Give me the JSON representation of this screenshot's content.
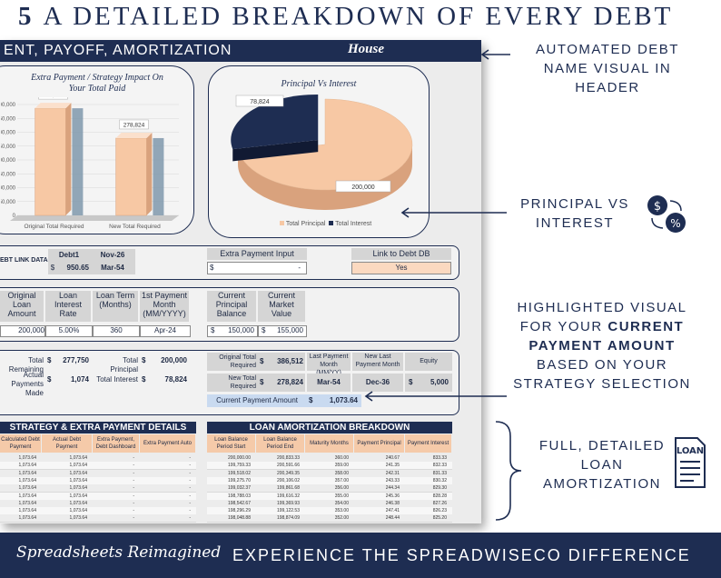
{
  "heading": {
    "number": "5",
    "text": "A DETAILED BREAKDOWN OF EVERY DEBT"
  },
  "sheet": {
    "title": "ENT, PAYOFF, AMORTIZATION",
    "debt_name": "House",
    "bar_panel": {
      "title_line1": "Extra Payment / Strategy Impact On",
      "title_line2": "Your Total Paid",
      "y_ticks": [
        "00,000",
        "50,000",
        "00,000",
        "50,000",
        "00,000",
        "50,000",
        "00,000",
        "50,000",
        "0"
      ]
    },
    "pie_panel": {
      "title": "Principal Vs Interest",
      "legend_principal": "Total Principal",
      "legend_interest": "Total Interest"
    },
    "link_row": {
      "label": "EBT LINK DATA",
      "debt": "Debt1",
      "date1": "Nov-26",
      "dollar": "$",
      "amount": "950.65",
      "date2": "Mar-54",
      "extra_label": "Extra Payment Input",
      "extra_dollar": "$",
      "extra_value": "-",
      "link_label": "Link to Debt DB",
      "link_value": "Yes"
    },
    "loan_row": {
      "h1": "Original Loan Amount",
      "h2": "Loan Interest Rate",
      "h3": "Loan Term (Months)",
      "h4": "1st Payment Month (MM/YYYY)",
      "h5": "Current Principal Balance",
      "h6": "Current Market Value",
      "v1": "200,000",
      "v2": "5.00%",
      "v3": "360",
      "v4": "Apr-24",
      "v5_dollar": "$",
      "v5": "150,000",
      "v6_dollar": "$",
      "v6": "155,000"
    },
    "summary": {
      "total_remaining_label": "Total Remaining",
      "total_remaining": "277,750",
      "total_principal_label": "Total Principal",
      "total_principal": "200,000",
      "actual_payments_label": "Actual Payments Made",
      "actual_payments": "1,074",
      "total_interest_label": "Total Interest",
      "total_interest": "78,824",
      "orig_total_label": "Original Total Required",
      "orig_total": "386,512",
      "last_month_label": "Last Payment Month (MM/YY)",
      "last_month": "Mar-54",
      "new_last_label": "New Last Payment Month",
      "new_last": "Dec-36",
      "equity_label": "Equity",
      "equity": "5,000",
      "new_total_label": "New Total Required",
      "new_total": "278,824",
      "current_payment_label": "Current Payment Amount",
      "current_payment": "1,073.64",
      "dollar": "$"
    },
    "strategy_table": {
      "title": "STRATEGY & EXTRA PAYMENT DETAILS",
      "headers": [
        "Calculated Debt Payment",
        "Actual Debt Payment",
        "Extra Payment, Debt Dashboard",
        "Extra Payment Auto"
      ],
      "rows": [
        [
          "1,073.64",
          "1,073.64",
          "-",
          "-"
        ],
        [
          "1,073.64",
          "1,073.64",
          "-",
          "-"
        ],
        [
          "1,073.64",
          "1,073.64",
          "-",
          "-"
        ],
        [
          "1,073.64",
          "1,073.64",
          "-",
          "-"
        ],
        [
          "1,073.64",
          "1,073.64",
          "-",
          "-"
        ],
        [
          "1,073.64",
          "1,073.64",
          "-",
          "-"
        ],
        [
          "1,073.64",
          "1,073.64",
          "-",
          "-"
        ],
        [
          "1,073.64",
          "1,073.64",
          "-",
          "-"
        ],
        [
          "1,073.64",
          "1,073.64",
          "-",
          "-"
        ]
      ]
    },
    "amort_table": {
      "title": "LOAN AMORTIZATION BREAKDOWN",
      "headers": [
        "Loan Balance Period Start",
        "Loan Balance Period End",
        "Maturity Months",
        "Payment Principal",
        "Payment Interest"
      ],
      "rows": [
        [
          "200,000.00",
          "200,833.33",
          "360.00",
          "240.67",
          "833.33"
        ],
        [
          "199,759.33",
          "200,591.66",
          "359.00",
          "241.35",
          "832.33"
        ],
        [
          "199,518.02",
          "200,349.35",
          "358.00",
          "242.31",
          "831.33"
        ],
        [
          "199,275.70",
          "200,106.02",
          "357.00",
          "243.33",
          "830.32"
        ],
        [
          "199,032.37",
          "199,861.68",
          "356.00",
          "244.34",
          "829.30"
        ],
        [
          "198,788.03",
          "199,616.32",
          "355.00",
          "245.36",
          "828.28"
        ],
        [
          "198,542.67",
          "199,369.93",
          "354.00",
          "246.38",
          "827.26"
        ],
        [
          "198,296.29",
          "199,122.53",
          "353.00",
          "247.41",
          "826.23"
        ],
        [
          "198,048.88",
          "198,874.09",
          "352.00",
          "248.44",
          "825.20"
        ]
      ]
    }
  },
  "chart_data": [
    {
      "type": "bar",
      "title": "Extra Payment / Strategy Impact On Your Total Paid",
      "categories": [
        "Original Total Required",
        "New Total Required"
      ],
      "values": [
        386512,
        278824
      ],
      "data_labels": [
        "386,512",
        "278,824"
      ],
      "ylim": [
        0,
        400000
      ],
      "colors": [
        "#f7c8a4",
        "#f7c8a4"
      ]
    },
    {
      "type": "pie",
      "title": "Principal Vs Interest",
      "categories": [
        "Total Principal",
        "Total Interest"
      ],
      "values": [
        200000,
        78824
      ],
      "data_labels": [
        "200,000",
        "78,824"
      ],
      "colors": [
        "#f7c8a4",
        "#1e2d52"
      ],
      "legend": "bottom"
    }
  ],
  "annotations": {
    "a1": [
      "AUTOMATED DEBT",
      "NAME VISUAL IN",
      "HEADER"
    ],
    "a2": [
      "PRINCIPAL VS",
      "INTEREST"
    ],
    "a3_l1": "HIGHLIGHTED VISUAL",
    "a3_l2a": "FOR YOUR ",
    "a3_l2b": "CURRENT",
    "a3_l3": "PAYMENT AMOUNT",
    "a3_l4": "BASED ON YOUR",
    "a3_l5": "STRATEGY SELECTION",
    "a4": [
      "FULL, DETAILED",
      "LOAN",
      "AMORTIZATION"
    ],
    "loan_icon_text": "LOAN",
    "money_icon_dollar": "$",
    "money_icon_percent": "%"
  },
  "footer": {
    "brand": "Spreadsheets Reimagined",
    "tagline": "EXPERIENCE THE SPREADWISECO DIFFERENCE"
  }
}
